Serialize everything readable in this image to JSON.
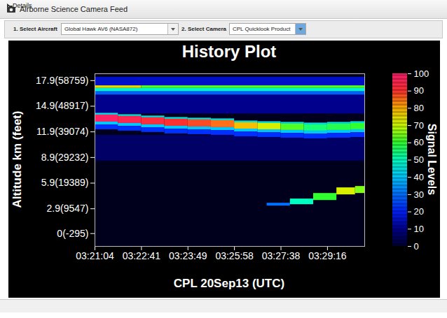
{
  "header": {
    "title": "Airborne Science Camera Feed"
  },
  "controls": [
    {
      "label": "1. Select Aircraft",
      "value": "Global Hawk AV6 (NASA872)"
    },
    {
      "label": "2. Select Camera",
      "value": "CPL Quicklook Product"
    }
  ],
  "footer": {
    "label": "Details"
  },
  "chart_data": {
    "type": "heatmap",
    "title": "History Plot",
    "x_label": "CPL 20Sep13 (UTC)",
    "y_label": "Altitude km (feet)",
    "xlim": [
      0,
      580
    ],
    "xticks": [
      {
        "value": 0,
        "label": "03:21:04"
      },
      {
        "value": 100,
        "label": "03:22:41"
      },
      {
        "value": 200,
        "label": "03:23:49"
      },
      {
        "value": 300,
        "label": "03:25:58"
      },
      {
        "value": 400,
        "label": "03:27:38"
      },
      {
        "value": 500,
        "label": "03:29:16"
      }
    ],
    "ylim": [
      -1.5,
      18.7
    ],
    "yticks": [
      {
        "value": 17.9,
        "label": "17.9(58759)"
      },
      {
        "value": 14.9,
        "label": "14.9(48917)"
      },
      {
        "value": 11.9,
        "label": "11.9(39074)"
      },
      {
        "value": 8.9,
        "label": "8.9(29232)"
      },
      {
        "value": 5.9,
        "label": "5.9(19389)"
      },
      {
        "value": 2.9,
        "label": "2.9(9547)"
      },
      {
        "value": 0,
        "label": "0(-295)"
      }
    ],
    "colorbar": {
      "label": "Signal Levels",
      "range": [
        0,
        100
      ],
      "ticks": [
        0,
        10,
        20,
        30,
        40,
        50,
        60,
        70,
        80,
        90,
        100
      ]
    },
    "cells": [
      [
        0,
        580,
        17.3,
        18.3,
        15
      ],
      [
        0,
        100,
        17.0,
        17.3,
        75
      ],
      [
        100,
        580,
        17.0,
        17.3,
        62
      ],
      [
        0,
        580,
        16.6,
        17.0,
        48
      ],
      [
        0,
        580,
        16.2,
        16.6,
        28
      ],
      [
        0,
        580,
        14.0,
        16.2,
        10
      ],
      [
        0,
        580,
        8.5,
        11.5,
        6
      ],
      [
        0,
        50,
        13.88,
        14.08,
        45
      ],
      [
        0,
        50,
        13.06,
        13.88,
        98
      ],
      [
        0,
        50,
        12.71,
        13.06,
        40
      ],
      [
        0,
        50,
        12.16,
        12.71,
        22
      ],
      [
        50,
        100,
        13.72,
        13.92,
        45
      ],
      [
        50,
        100,
        12.9,
        13.72,
        95
      ],
      [
        50,
        100,
        12.55,
        12.9,
        40
      ],
      [
        50,
        100,
        12.0,
        12.55,
        22
      ],
      [
        100,
        150,
        13.56,
        13.76,
        45
      ],
      [
        100,
        150,
        12.74,
        13.56,
        92
      ],
      [
        100,
        150,
        12.39,
        12.74,
        40
      ],
      [
        100,
        150,
        11.84,
        12.39,
        22
      ],
      [
        150,
        200,
        13.39,
        13.59,
        45
      ],
      [
        150,
        200,
        12.57,
        13.39,
        90
      ],
      [
        150,
        200,
        12.22,
        12.57,
        40
      ],
      [
        150,
        200,
        11.67,
        12.22,
        22
      ],
      [
        200,
        250,
        13.31,
        13.51,
        45
      ],
      [
        200,
        250,
        12.49,
        13.31,
        88
      ],
      [
        200,
        250,
        12.14,
        12.49,
        40
      ],
      [
        200,
        250,
        11.59,
        12.14,
        22
      ],
      [
        250,
        300,
        13.23,
        13.43,
        45
      ],
      [
        250,
        300,
        12.41,
        13.23,
        85
      ],
      [
        250,
        300,
        12.06,
        12.41,
        40
      ],
      [
        250,
        300,
        11.51,
        12.06,
        22
      ],
      [
        300,
        350,
        12.98,
        13.18,
        45
      ],
      [
        300,
        350,
        12.24,
        12.98,
        78
      ],
      [
        300,
        350,
        11.89,
        12.24,
        40
      ],
      [
        300,
        350,
        11.34,
        11.89,
        22
      ],
      [
        350,
        400,
        12.9,
        13.1,
        45
      ],
      [
        350,
        400,
        12.16,
        12.9,
        72
      ],
      [
        350,
        400,
        11.81,
        12.16,
        40
      ],
      [
        350,
        400,
        11.26,
        11.81,
        22
      ],
      [
        400,
        450,
        12.82,
        13.02,
        45
      ],
      [
        400,
        450,
        12.08,
        12.82,
        62
      ],
      [
        400,
        450,
        11.73,
        12.08,
        40
      ],
      [
        400,
        450,
        11.18,
        11.73,
        22
      ],
      [
        450,
        500,
        12.74,
        12.94,
        45
      ],
      [
        450,
        500,
        12.0,
        12.74,
        55
      ],
      [
        450,
        500,
        11.65,
        12.0,
        40
      ],
      [
        450,
        500,
        11.1,
        11.65,
        22
      ],
      [
        500,
        550,
        12.82,
        13.02,
        45
      ],
      [
        500,
        550,
        12.08,
        12.82,
        58
      ],
      [
        500,
        550,
        11.73,
        12.08,
        40
      ],
      [
        500,
        550,
        11.18,
        11.73,
        22
      ],
      [
        550,
        580,
        12.9,
        13.1,
        45
      ],
      [
        550,
        580,
        12.16,
        12.9,
        60
      ],
      [
        550,
        580,
        11.81,
        12.16,
        40
      ],
      [
        550,
        580,
        11.26,
        11.81,
        22
      ],
      [
        370,
        420,
        3.23,
        3.56,
        30
      ],
      [
        420,
        470,
        3.39,
        4.05,
        50
      ],
      [
        470,
        520,
        3.88,
        4.7,
        60
      ],
      [
        520,
        560,
        4.54,
        5.36,
        72
      ],
      [
        560,
        580,
        4.7,
        5.52,
        65
      ]
    ]
  }
}
